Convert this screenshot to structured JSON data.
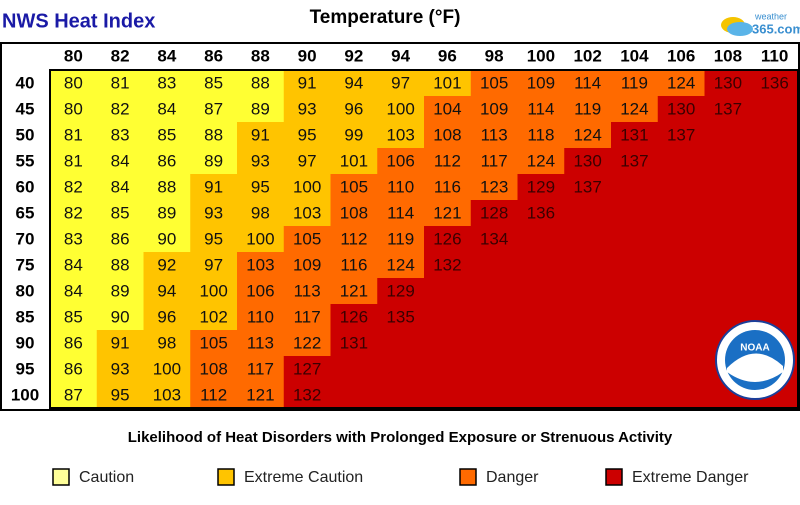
{
  "header": {
    "title": "NWS Heat Index",
    "axis_title": "Temperature (°F)",
    "logo_word": "weather",
    "logo_number": "365.com"
  },
  "table": {
    "columns": [
      80,
      82,
      84,
      86,
      88,
      90,
      92,
      94,
      96,
      98,
      100,
      102,
      104,
      106,
      108,
      110
    ],
    "rows": [
      {
        "label": 40,
        "cells": [
          80,
          81,
          83,
          85,
          88,
          91,
          94,
          97,
          101,
          105,
          109,
          114,
          119,
          124,
          130,
          136
        ],
        "level_spans": [
          5,
          4,
          5,
          2
        ]
      },
      {
        "label": 45,
        "cells": [
          80,
          82,
          84,
          87,
          89,
          93,
          96,
          100,
          104,
          109,
          114,
          119,
          124,
          130,
          137
        ],
        "level_spans": [
          5,
          3,
          5,
          3
        ]
      },
      {
        "label": 50,
        "cells": [
          81,
          83,
          85,
          88,
          91,
          95,
          99,
          103,
          108,
          113,
          118,
          124,
          131,
          137
        ],
        "level_spans": [
          4,
          4,
          4,
          4
        ]
      },
      {
        "label": 55,
        "cells": [
          81,
          84,
          86,
          89,
          93,
          97,
          101,
          106,
          112,
          117,
          124,
          130,
          137
        ],
        "level_spans": [
          4,
          3,
          4,
          5
        ]
      },
      {
        "label": 60,
        "cells": [
          82,
          84,
          88,
          91,
          95,
          100,
          105,
          110,
          116,
          123,
          129,
          137
        ],
        "level_spans": [
          3,
          3,
          4,
          6
        ]
      },
      {
        "label": 65,
        "cells": [
          82,
          85,
          89,
          93,
          98,
          103,
          108,
          114,
          121,
          128,
          136
        ],
        "level_spans": [
          3,
          3,
          3,
          7
        ]
      },
      {
        "label": 70,
        "cells": [
          83,
          86,
          90,
          95,
          100,
          105,
          112,
          119,
          126,
          134
        ],
        "level_spans": [
          3,
          2,
          3,
          8
        ]
      },
      {
        "label": 75,
        "cells": [
          84,
          88,
          92,
          97,
          103,
          109,
          116,
          124,
          132
        ],
        "level_spans": [
          2,
          2,
          4,
          8
        ]
      },
      {
        "label": 80,
        "cells": [
          84,
          89,
          94,
          100,
          106,
          113,
          121,
          129
        ],
        "level_spans": [
          2,
          2,
          3,
          9
        ]
      },
      {
        "label": 85,
        "cells": [
          85,
          90,
          96,
          102,
          110,
          117,
          126,
          135
        ],
        "level_spans": [
          2,
          2,
          2,
          10
        ]
      },
      {
        "label": 90,
        "cells": [
          86,
          91,
          98,
          105,
          113,
          122,
          131
        ],
        "level_spans": [
          1,
          2,
          3,
          10
        ]
      },
      {
        "label": 95,
        "cells": [
          86,
          93,
          100,
          108,
          117,
          127
        ],
        "level_spans": [
          1,
          2,
          2,
          11
        ]
      },
      {
        "label": 100,
        "cells": [
          87,
          95,
          103,
          112,
          121,
          132
        ],
        "level_spans": [
          1,
          2,
          2,
          11
        ]
      }
    ]
  },
  "legend": {
    "title": "Likelihood of Heat Disorders with Prolonged Exposure or Strenuous Activity",
    "levels": [
      {
        "name": "Caution",
        "color": "#ffff33",
        "swatch": "#ffff99"
      },
      {
        "name": "Extreme Caution",
        "color": "#ffc400",
        "swatch": "#ffc400"
      },
      {
        "name": "Danger",
        "color": "#ff6a00",
        "swatch": "#ff6a00"
      },
      {
        "name": "Extreme Danger",
        "color": "#cc0000",
        "swatch": "#cc0000"
      }
    ]
  },
  "badge": "NOAA"
}
